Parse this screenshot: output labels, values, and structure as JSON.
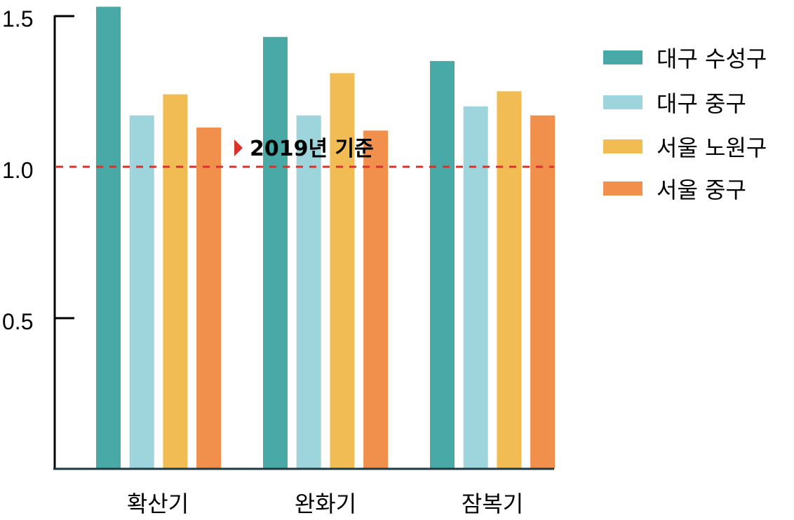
{
  "chart_data": {
    "type": "bar",
    "categories": [
      "확산기",
      "완화기",
      "잠복기"
    ],
    "series": [
      {
        "name": "대구 수성구",
        "color": "#48A9A6",
        "values": [
          1.53,
          1.43,
          1.35
        ]
      },
      {
        "name": "대구 중구",
        "color": "#9ED5DC",
        "values": [
          1.17,
          1.17,
          1.2
        ]
      },
      {
        "name": "서울 노원구",
        "color": "#F1BC54",
        "values": [
          1.24,
          1.31,
          1.25
        ]
      },
      {
        "name": "서울 중구",
        "color": "#F1904C",
        "values": [
          1.13,
          1.12,
          1.17
        ]
      }
    ],
    "yticks": [
      "0.5",
      "1.0",
      "1.5"
    ],
    "ylim": [
      0,
      1.53
    ],
    "reference_line": {
      "value": 1.0,
      "label": "2019년 기준",
      "color": "#D9312B"
    },
    "legend_position": "right",
    "grid": false,
    "title": "",
    "xlabel": "",
    "ylabel": ""
  }
}
